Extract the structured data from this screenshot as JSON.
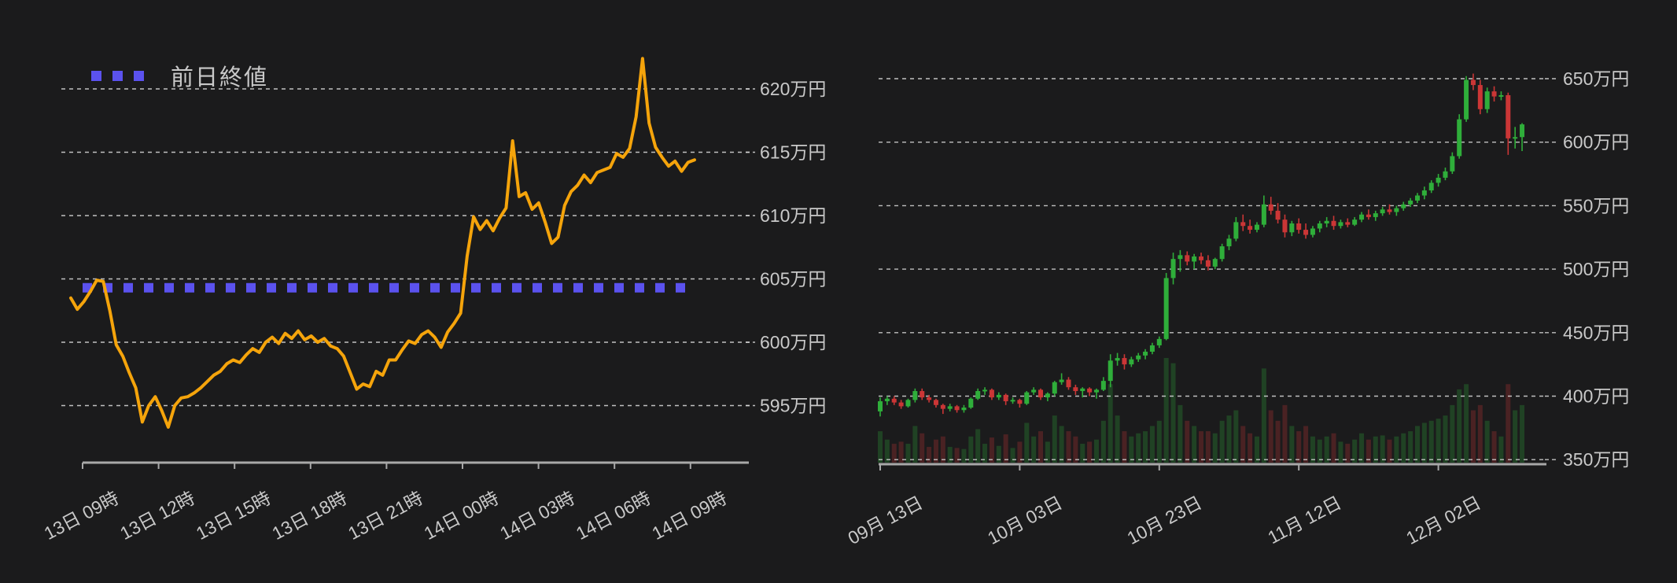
{
  "legend": {
    "previous_close_label": "前日終値"
  },
  "colors": {
    "background": "#1b1b1c",
    "gridline": "#dedede",
    "axis_line": "#a8a8a8",
    "tick_text": "#c9c9c9",
    "price_line": "#f5a40b",
    "previous_close": "#5b52ee",
    "candle_up": "#2fae3a",
    "candle_down": "#cb3636"
  },
  "chart_data": [
    {
      "type": "line",
      "title": "",
      "xlabel": "",
      "ylabel": "万円",
      "legend_entries": [
        "前日終値"
      ],
      "grid": true,
      "x_tick_labels": [
        "13日 09時",
        "13日 12時",
        "13日 15時",
        "13日 18時",
        "13日 21時",
        "14日 00時",
        "14日 03時",
        "14日 06時",
        "14日 09時"
      ],
      "y_tick_labels": [
        "620万円",
        "615万円",
        "610万円",
        "605万円",
        "600万円",
        "595万円"
      ],
      "y_tick_values": [
        620,
        615,
        610,
        605,
        600,
        595
      ],
      "ylim": [
        592.5,
        623.5
      ],
      "previous_close": 604.3,
      "interval_minutes": 15,
      "values": [
        603.5,
        602.6,
        603.2,
        604.0,
        604.9,
        604.8,
        602.5,
        599.8,
        598.9,
        597.6,
        596.4,
        593.7,
        595.0,
        595.7,
        594.6,
        593.3,
        595.0,
        595.6,
        595.7,
        596.0,
        596.4,
        596.9,
        597.4,
        597.7,
        598.3,
        598.6,
        598.4,
        599.0,
        599.5,
        599.2,
        600.0,
        600.4,
        599.9,
        600.7,
        600.3,
        600.9,
        600.2,
        600.5,
        600.0,
        600.3,
        599.7,
        599.5,
        598.9,
        597.6,
        596.3,
        596.7,
        596.5,
        597.7,
        597.4,
        598.6,
        598.6,
        599.4,
        600.1,
        599.9,
        600.6,
        600.9,
        600.4,
        599.6,
        600.8,
        601.5,
        602.3,
        606.8,
        609.9,
        608.9,
        609.6,
        608.8,
        609.8,
        610.6,
        615.9,
        611.5,
        611.8,
        610.5,
        611.0,
        609.5,
        607.8,
        608.3,
        610.8,
        611.9,
        612.4,
        613.2,
        612.6,
        613.4,
        613.6,
        613.8,
        614.9,
        614.6,
        615.3,
        617.8,
        622.4,
        617.3,
        615.4,
        614.6,
        613.9,
        614.3,
        613.5,
        614.2,
        614.4
      ]
    },
    {
      "type": "candlestick",
      "title": "",
      "xlabel": "",
      "ylabel": "万円",
      "grid": true,
      "x_tick_labels": [
        "09月 13日",
        "10月 03日",
        "10月 23日",
        "11月 12日",
        "12月 02日"
      ],
      "x_tick_day_indices": [
        0,
        20,
        40,
        60,
        80
      ],
      "y_tick_labels": [
        "650万円",
        "600万円",
        "550万円",
        "500万円",
        "450万円",
        "400万円",
        "350万円"
      ],
      "y_tick_values": [
        650,
        600,
        550,
        500,
        450,
        400,
        350
      ],
      "ylim": [
        345,
        658
      ],
      "candles_ohlcv": [
        [
          388,
          399,
          384,
          396,
          0.3
        ],
        [
          396,
          400,
          393,
          398,
          0.22
        ],
        [
          398,
          400,
          393,
          395,
          0.18
        ],
        [
          395,
          397,
          390,
          392,
          0.2
        ],
        [
          392,
          398,
          391,
          397,
          0.18
        ],
        [
          397,
          406,
          395,
          404,
          0.35
        ],
        [
          404,
          406,
          397,
          399,
          0.28
        ],
        [
          399,
          401,
          395,
          397,
          0.15
        ],
        [
          397,
          398,
          391,
          393,
          0.22
        ],
        [
          393,
          394,
          386,
          390,
          0.25
        ],
        [
          390,
          394,
          388,
          392,
          0.15
        ],
        [
          392,
          393,
          387,
          389,
          0.14
        ],
        [
          389,
          393,
          387,
          391,
          0.13
        ],
        [
          391,
          399,
          390,
          398,
          0.25
        ],
        [
          398,
          406,
          397,
          404,
          0.32
        ],
        [
          404,
          407,
          401,
          405,
          0.18
        ],
        [
          405,
          406,
          397,
          399,
          0.24
        ],
        [
          399,
          403,
          397,
          401,
          0.16
        ],
        [
          401,
          402,
          393,
          396,
          0.27
        ],
        [
          396,
          399,
          394,
          397,
          0.14
        ],
        [
          397,
          398,
          391,
          394,
          0.2
        ],
        [
          394,
          404,
          393,
          403,
          0.38
        ],
        [
          403,
          407,
          401,
          405,
          0.25
        ],
        [
          405,
          406,
          397,
          399,
          0.3
        ],
        [
          399,
          403,
          396,
          402,
          0.2
        ],
        [
          402,
          412,
          400,
          411,
          0.45
        ],
        [
          411,
          418,
          409,
          413,
          0.35
        ],
        [
          413,
          415,
          405,
          407,
          0.3
        ],
        [
          407,
          409,
          401,
          404,
          0.25
        ],
        [
          404,
          407,
          399,
          406,
          0.18
        ],
        [
          406,
          407,
          400,
          403,
          0.2
        ],
        [
          403,
          406,
          398,
          405,
          0.22
        ],
        [
          405,
          415,
          404,
          412,
          0.4
        ],
        [
          412,
          433,
          407,
          428,
          0.75
        ],
        [
          428,
          434,
          424,
          430,
          0.45
        ],
        [
          430,
          433,
          421,
          425,
          0.3
        ],
        [
          425,
          431,
          423,
          429,
          0.25
        ],
        [
          429,
          434,
          427,
          432,
          0.28
        ],
        [
          432,
          437,
          429,
          435,
          0.3
        ],
        [
          435,
          442,
          433,
          440,
          0.35
        ],
        [
          440,
          447,
          438,
          445,
          0.4
        ],
        [
          445,
          497,
          444,
          493,
          1.0
        ],
        [
          493,
          513,
          488,
          508,
          0.95
        ],
        [
          508,
          515,
          498,
          511,
          0.55
        ],
        [
          511,
          514,
          503,
          506,
          0.4
        ],
        [
          506,
          512,
          500,
          510,
          0.35
        ],
        [
          510,
          513,
          504,
          507,
          0.3
        ],
        [
          507,
          511,
          499,
          502,
          0.3
        ],
        [
          502,
          509,
          500,
          508,
          0.28
        ],
        [
          508,
          520,
          506,
          518,
          0.4
        ],
        [
          518,
          527,
          515,
          524,
          0.45
        ],
        [
          524,
          541,
          522,
          537,
          0.5
        ],
        [
          537,
          543,
          530,
          534,
          0.35
        ],
        [
          534,
          539,
          528,
          531,
          0.28
        ],
        [
          531,
          537,
          529,
          535,
          0.25
        ],
        [
          535,
          558,
          533,
          551,
          0.9
        ],
        [
          551,
          557,
          543,
          546,
          0.5
        ],
        [
          546,
          552,
          536,
          539,
          0.4
        ],
        [
          539,
          543,
          525,
          529,
          0.55
        ],
        [
          529,
          538,
          526,
          536,
          0.35
        ],
        [
          536,
          540,
          528,
          531,
          0.3
        ],
        [
          531,
          536,
          524,
          527,
          0.35
        ],
        [
          527,
          534,
          525,
          532,
          0.25
        ],
        [
          532,
          538,
          529,
          536,
          0.22
        ],
        [
          536,
          541,
          533,
          538,
          0.25
        ],
        [
          538,
          542,
          531,
          534,
          0.28
        ],
        [
          534,
          539,
          532,
          537,
          0.2
        ],
        [
          537,
          540,
          533,
          535,
          0.18
        ],
        [
          535,
          541,
          534,
          539,
          0.22
        ],
        [
          539,
          545,
          537,
          543,
          0.28
        ],
        [
          543,
          547,
          539,
          541,
          0.22
        ],
        [
          541,
          546,
          538,
          544,
          0.25
        ],
        [
          544,
          549,
          542,
          547,
          0.26
        ],
        [
          547,
          551,
          543,
          545,
          0.22
        ],
        [
          545,
          550,
          542,
          548,
          0.25
        ],
        [
          548,
          553,
          546,
          551,
          0.28
        ],
        [
          551,
          556,
          549,
          554,
          0.3
        ],
        [
          554,
          560,
          552,
          558,
          0.35
        ],
        [
          558,
          565,
          555,
          562,
          0.38
        ],
        [
          562,
          570,
          560,
          568,
          0.4
        ],
        [
          568,
          575,
          565,
          572,
          0.42
        ],
        [
          572,
          580,
          570,
          577,
          0.45
        ],
        [
          577,
          592,
          575,
          589,
          0.55
        ],
        [
          589,
          622,
          587,
          618,
          0.7
        ],
        [
          618,
          652,
          616,
          649,
          0.75
        ],
        [
          649,
          654,
          641,
          645,
          0.5
        ],
        [
          645,
          649,
          622,
          626,
          0.55
        ],
        [
          626,
          643,
          623,
          640,
          0.4
        ],
        [
          640,
          644,
          632,
          636,
          0.3
        ],
        [
          636,
          640,
          633,
          637,
          0.25
        ],
        [
          637,
          639,
          590,
          603,
          0.75
        ],
        [
          603,
          612,
          595,
          604,
          0.5
        ],
        [
          604,
          615,
          593,
          614,
          0.55
        ]
      ]
    }
  ]
}
